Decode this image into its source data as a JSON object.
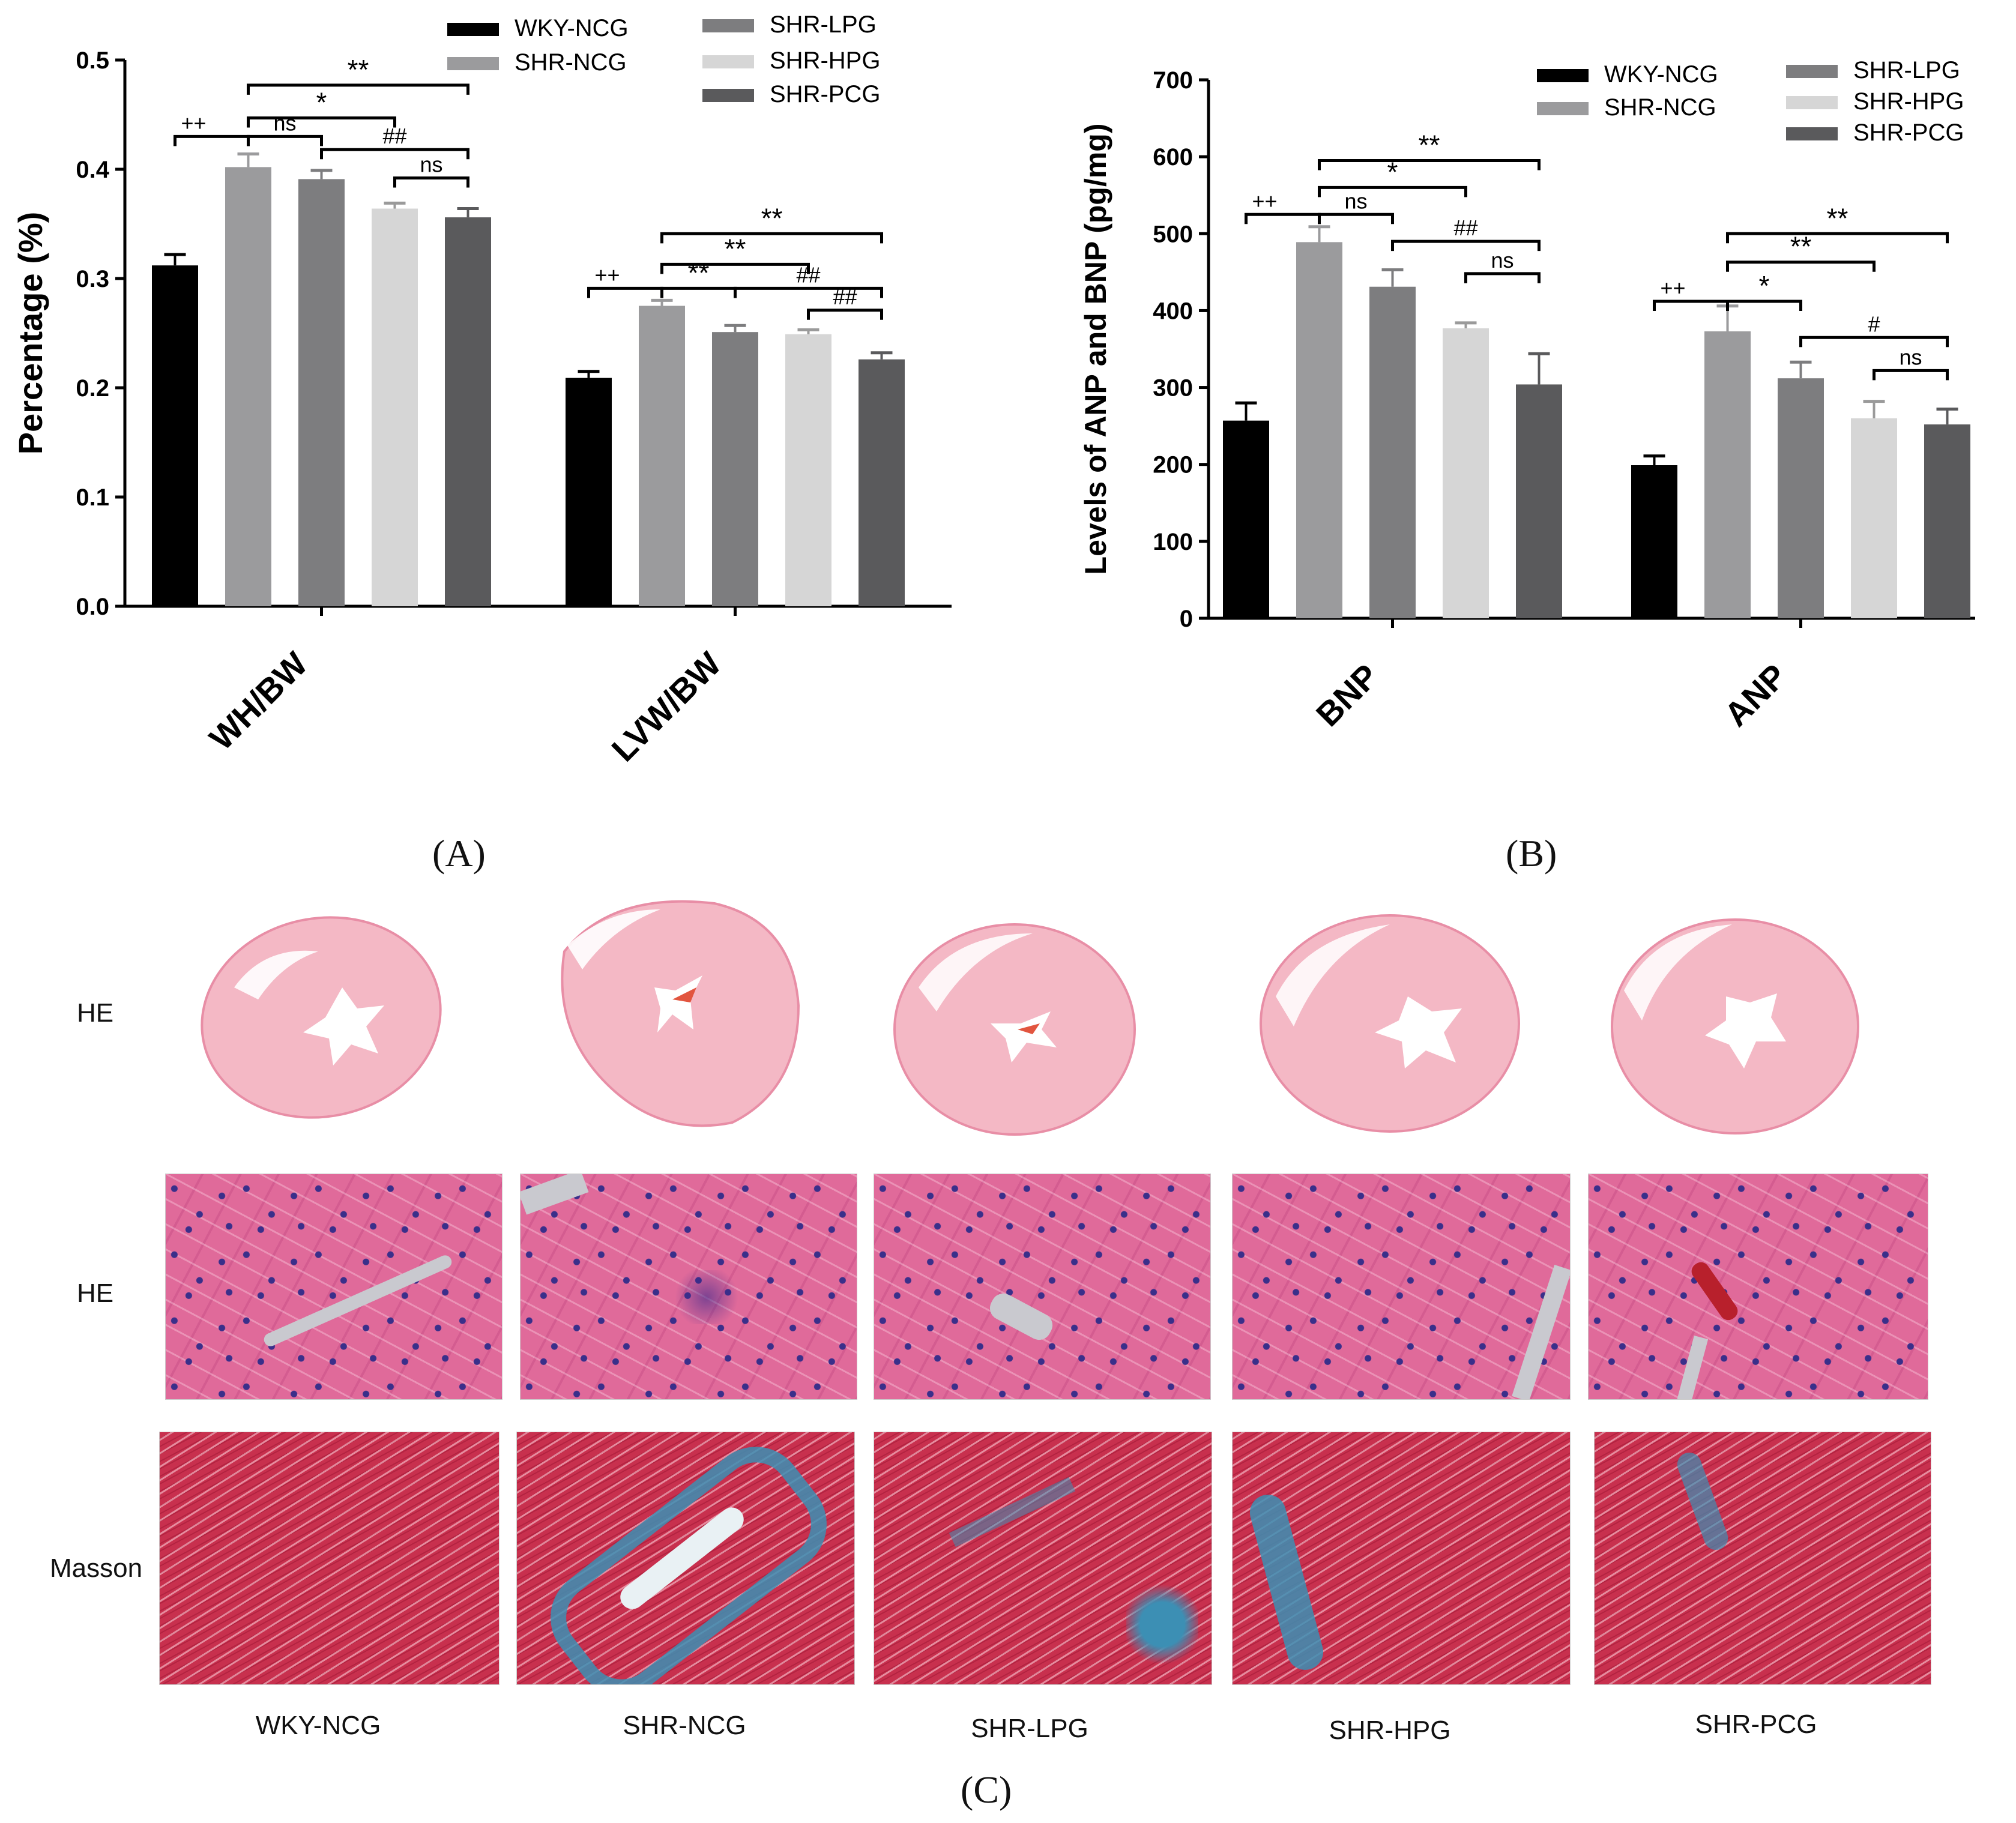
{
  "chart_data": [
    {
      "type": "bar",
      "panel": "A",
      "categories": [
        "WH/BW",
        "LVW/BW"
      ],
      "series": [
        {
          "name": "WKY-NCG",
          "values": [
            0.312,
            0.209
          ],
          "errors": [
            0.01,
            0.006
          ],
          "color": "#000000"
        },
        {
          "name": "SHR-NCG",
          "values": [
            0.402,
            0.275
          ],
          "errors": [
            0.012,
            0.005
          ],
          "color": "#9b9b9d"
        },
        {
          "name": "SHR-LPG",
          "values": [
            0.391,
            0.251
          ],
          "errors": [
            0.008,
            0.006
          ],
          "color": "#7d7d7f"
        },
        {
          "name": "SHR-HPG",
          "values": [
            0.364,
            0.249
          ],
          "errors": [
            0.005,
            0.004
          ],
          "color": "#d6d6d6"
        },
        {
          "name": "SHR-PCG",
          "values": [
            0.356,
            0.226
          ],
          "errors": [
            0.008,
            0.006
          ],
          "color": "#5a5a5c"
        }
      ],
      "ylabel": "Percentage (%)",
      "ylim": [
        0,
        0.5
      ],
      "yticks": [
        "0.0",
        "0.1",
        "0.2",
        "0.3",
        "0.4",
        "0.5"
      ],
      "legend_position": "top",
      "annotations": [
        {
          "cat": 0,
          "from": 0,
          "to": 1,
          "level": 0.43,
          "text": "++"
        },
        {
          "cat": 0,
          "from": 1,
          "to": 2,
          "level": 0.43,
          "text": "ns"
        },
        {
          "cat": 0,
          "from": 1,
          "to": 3,
          "level": 0.447,
          "text": "*"
        },
        {
          "cat": 0,
          "from": 2,
          "to": 4,
          "level": 0.418,
          "text": "##"
        },
        {
          "cat": 0,
          "from": 3,
          "to": 4,
          "level": 0.392,
          "text": "ns"
        },
        {
          "cat": 0,
          "from": 1,
          "to": 4,
          "level": 0.477,
          "text": "**"
        },
        {
          "cat": 1,
          "from": 0,
          "to": 1,
          "level": 0.291,
          "text": "++"
        },
        {
          "cat": 1,
          "from": 1,
          "to": 2,
          "level": 0.291,
          "text": "**"
        },
        {
          "cat": 1,
          "from": 1,
          "to": 3,
          "level": 0.313,
          "text": "**"
        },
        {
          "cat": 1,
          "from": 1,
          "to": 4,
          "level": 0.341,
          "text": "**"
        },
        {
          "cat": 1,
          "from": 2,
          "to": 4,
          "level": 0.291,
          "text": "##"
        },
        {
          "cat": 1,
          "from": 3,
          "to": 4,
          "level": 0.271,
          "text": "##"
        }
      ]
    },
    {
      "type": "bar",
      "panel": "B",
      "categories": [
        "BNP",
        "ANP"
      ],
      "series": [
        {
          "name": "WKY-NCG",
          "values": [
            257,
            199
          ],
          "errors": [
            23,
            12
          ],
          "color": "#000000"
        },
        {
          "name": "SHR-NCG",
          "values": [
            489,
            373
          ],
          "errors": [
            20,
            33
          ],
          "color": "#9b9b9d"
        },
        {
          "name": "SHR-LPG",
          "values": [
            431,
            312
          ],
          "errors": [
            22,
            21
          ],
          "color": "#7d7d7f"
        },
        {
          "name": "SHR-HPG",
          "values": [
            377,
            260
          ],
          "errors": [
            7,
            22
          ],
          "color": "#d6d6d6"
        },
        {
          "name": "SHR-PCG",
          "values": [
            304,
            252
          ],
          "errors": [
            40,
            20
          ],
          "color": "#5a5a5c"
        }
      ],
      "ylabel": "Levels of ANP and BNP (pg/mg)",
      "ylim": [
        0,
        700
      ],
      "yticks": [
        "0",
        "100",
        "200",
        "300",
        "400",
        "500",
        "600",
        "700"
      ],
      "legend_position": "top-right",
      "annotations": [
        {
          "cat": 0,
          "from": 0,
          "to": 1,
          "level": 525,
          "text": "++"
        },
        {
          "cat": 0,
          "from": 1,
          "to": 2,
          "level": 525,
          "text": "ns"
        },
        {
          "cat": 0,
          "from": 1,
          "to": 3,
          "level": 560,
          "text": "*"
        },
        {
          "cat": 0,
          "from": 1,
          "to": 4,
          "level": 595,
          "text": "**"
        },
        {
          "cat": 0,
          "from": 2,
          "to": 4,
          "level": 490,
          "text": "##"
        },
        {
          "cat": 0,
          "from": 3,
          "to": 4,
          "level": 448,
          "text": "ns"
        },
        {
          "cat": 1,
          "from": 0,
          "to": 1,
          "level": 412,
          "text": "++"
        },
        {
          "cat": 1,
          "from": 1,
          "to": 2,
          "level": 412,
          "text": "*"
        },
        {
          "cat": 1,
          "from": 1,
          "to": 3,
          "level": 463,
          "text": "**"
        },
        {
          "cat": 1,
          "from": 1,
          "to": 4,
          "level": 500,
          "text": "**"
        },
        {
          "cat": 1,
          "from": 2,
          "to": 4,
          "level": 365,
          "text": "#"
        },
        {
          "cat": 1,
          "from": 3,
          "to": 4,
          "level": 322,
          "text": "ns"
        }
      ]
    }
  ],
  "panel_labels": {
    "a": "(A)",
    "b": "(B)",
    "c": "(C)"
  },
  "histology": {
    "row_labels": [
      "HE",
      "HE",
      "Masson"
    ],
    "groups": [
      "WKY-NCG",
      "SHR-NCG",
      "SHR-LPG",
      "SHR-HPG",
      "SHR-PCG"
    ]
  },
  "colors": {
    "heart_fill": "#f4b8c5",
    "heart_edge": "#e88ea6",
    "he_base": "#e06a9a",
    "masson_red": "#c8304e",
    "masson_blue": "#3c8fb4"
  }
}
